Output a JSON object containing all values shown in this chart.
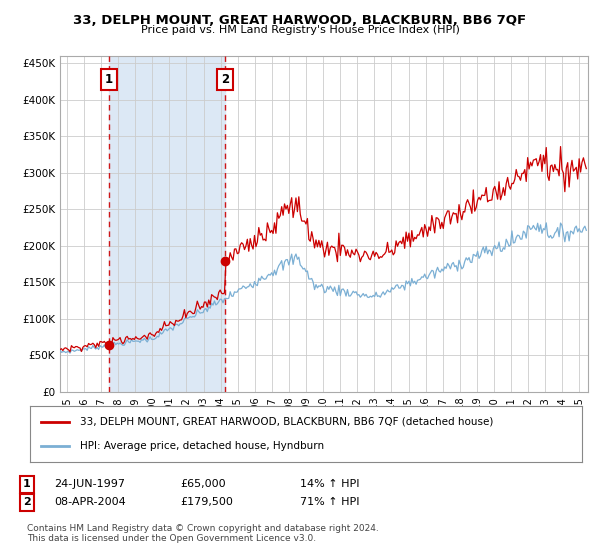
{
  "title": "33, DELPH MOUNT, GREAT HARWOOD, BLACKBURN, BB6 7QF",
  "subtitle": "Price paid vs. HM Land Registry's House Price Index (HPI)",
  "legend_line1": "33, DELPH MOUNT, GREAT HARWOOD, BLACKBURN, BB6 7QF (detached house)",
  "legend_line2": "HPI: Average price, detached house, Hyndburn",
  "annotation1_label": "1",
  "annotation1_date": "24-JUN-1997",
  "annotation1_price": "£65,000",
  "annotation1_hpi": "14% ↑ HPI",
  "annotation1_year": 1997.48,
  "annotation1_value": 65000,
  "annotation2_label": "2",
  "annotation2_date": "08-APR-2004",
  "annotation2_price": "£179,500",
  "annotation2_hpi": "71% ↑ HPI",
  "annotation2_year": 2004.27,
  "annotation2_value": 179500,
  "hpi_color": "#7bafd4",
  "price_color": "#cc0000",
  "shade_color": "#dce8f5",
  "bg_color": "#ffffff",
  "plot_bg": "#ffffff",
  "footer": "Contains HM Land Registry data © Crown copyright and database right 2024.\nThis data is licensed under the Open Government Licence v3.0.",
  "ylim": [
    0,
    460000
  ],
  "yticks": [
    0,
    50000,
    100000,
    150000,
    200000,
    250000,
    300000,
    350000,
    400000,
    450000
  ],
  "ytick_labels": [
    "£0",
    "£50K",
    "£100K",
    "£150K",
    "£200K",
    "£250K",
    "£300K",
    "£350K",
    "£400K",
    "£450K"
  ],
  "xlim_start": 1994.6,
  "xlim_end": 2025.5
}
